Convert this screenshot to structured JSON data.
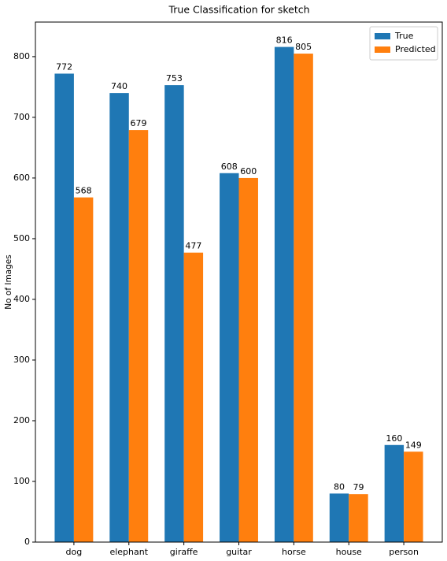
{
  "chart_data": {
    "type": "bar",
    "title": "True Classification for sketch",
    "y_label": "No of Images",
    "categories": [
      "dog",
      "elephant",
      "giraffe",
      "guitar",
      "horse",
      "house",
      "person"
    ],
    "series": [
      {
        "name": "True",
        "color": "#1f77b4",
        "values": [
          772,
          740,
          753,
          608,
          816,
          80,
          160
        ]
      },
      {
        "name": "Predicted",
        "color": "#ff7f0e",
        "values": [
          568,
          679,
          477,
          600,
          805,
          79,
          149
        ]
      }
    ],
    "ylim": [
      0,
      857
    ],
    "yticks": [
      0,
      100,
      200,
      300,
      400,
      500,
      600,
      700,
      800
    ],
    "legend": "upper right"
  }
}
